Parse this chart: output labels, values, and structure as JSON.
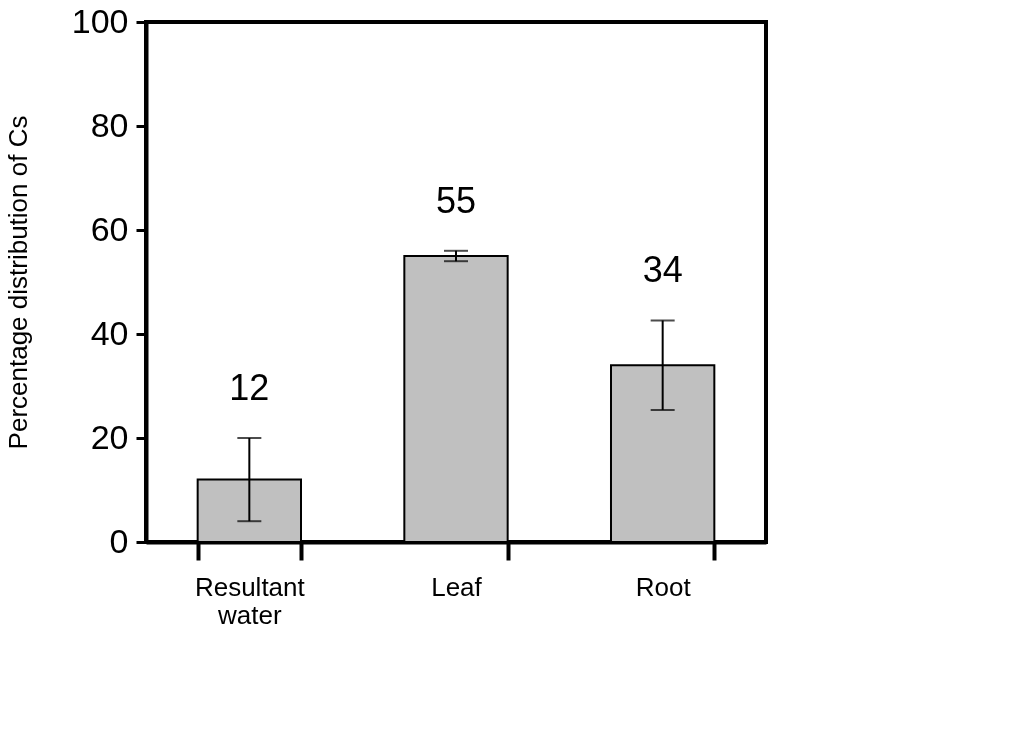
{
  "chart_data": {
    "type": "bar",
    "ylabel": "Percentage distribution of Cs",
    "categories": [
      "Resultant water",
      "Leaf",
      "Root"
    ],
    "values": [
      12,
      55,
      34
    ],
    "errors": [
      8,
      1,
      8.6
    ],
    "color": "#c0c0c0",
    "ylim": [
      0,
      100
    ],
    "yticks": [
      0,
      20,
      40,
      60,
      80,
      100
    ],
    "data_labels": true,
    "grid": false
  }
}
